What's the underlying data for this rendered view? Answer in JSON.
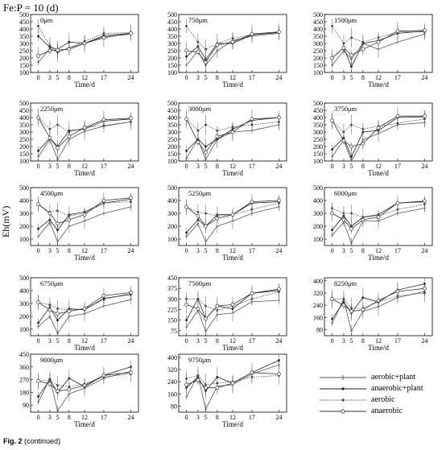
{
  "title": "Fe:P = 10 (d)",
  "ylabel": "Eh(mV)",
  "caption_prefix": "Fig. 2",
  "caption_suffix": " (continued)",
  "xlabel": "Time/d",
  "legend": [
    {
      "name": "aerobic+plant",
      "style": "solid",
      "marker": "bar"
    },
    {
      "name": "anaerobic+plant",
      "style": "solid",
      "marker": "dot"
    },
    {
      "name": "aerobic",
      "style": "dotted",
      "marker": "dot"
    },
    {
      "name": "anaerobic",
      "style": "solid",
      "marker": "circle"
    }
  ],
  "chart_data": [
    {
      "type": "line",
      "annotation": "0μm",
      "x": [
        0,
        3,
        5,
        8,
        12,
        17,
        24
      ],
      "yticks": [
        100,
        150,
        200,
        250,
        300,
        350,
        400,
        450,
        500
      ],
      "ylim": [
        100,
        500
      ],
      "series": [
        {
          "values": [
            170,
            265,
            240,
            270,
            300,
            345,
            365
          ]
        },
        {
          "values": [
            350,
            275,
            260,
            310,
            300,
            355,
            370
          ]
        },
        {
          "values": [
            420,
            285,
            240,
            270,
            315,
            370,
            375
          ]
        },
        {
          "values": [
            215,
            250,
            255,
            260,
            300,
            340,
            370
          ]
        }
      ]
    },
    {
      "type": "line",
      "annotation": "750μm",
      "x": [
        0,
        3,
        5,
        8,
        12,
        17,
        24
      ],
      "yticks": [
        100,
        150,
        200,
        250,
        300,
        350,
        400,
        450,
        500
      ],
      "ylim": [
        100,
        500
      ],
      "series": [
        {
          "values": [
            150,
            250,
            150,
            250,
            320,
            350,
            370
          ]
        },
        {
          "values": [
            210,
            280,
            190,
            300,
            300,
            360,
            375
          ]
        },
        {
          "values": [
            420,
            310,
            260,
            300,
            335,
            360,
            380
          ]
        },
        {
          "values": [
            250,
            240,
            170,
            290,
            310,
            365,
            380
          ]
        }
      ]
    },
    {
      "type": "line",
      "annotation": "1500μm",
      "x": [
        0,
        3,
        5,
        8,
        12,
        17,
        24
      ],
      "yticks": [
        100,
        150,
        200,
        250,
        300,
        350,
        400,
        450,
        500
      ],
      "ylim": [
        100,
        500
      ],
      "series": [
        {
          "values": [
            150,
            250,
            190,
            300,
            260,
            310,
            365
          ]
        },
        {
          "values": [
            200,
            270,
            140,
            300,
            320,
            370,
            385
          ]
        },
        {
          "values": [
            420,
            300,
            340,
            310,
            340,
            380,
            380
          ]
        },
        {
          "values": [
            200,
            270,
            220,
            260,
            310,
            385,
            390
          ]
        }
      ]
    },
    {
      "type": "line",
      "annotation": "2250μm",
      "x": [
        0,
        3,
        5,
        8,
        12,
        17,
        24
      ],
      "yticks": [
        100,
        150,
        200,
        250,
        300,
        350,
        400,
        450,
        500
      ],
      "ylim": [
        100,
        500
      ],
      "series": [
        {
          "values": [
            130,
            250,
            110,
            250,
            305,
            340,
            370
          ]
        },
        {
          "values": [
            170,
            260,
            200,
            310,
            320,
            375,
            390
          ]
        },
        {
          "values": [
            400,
            320,
            350,
            300,
            330,
            345,
            370
          ]
        },
        {
          "values": [
            400,
            260,
            190,
            270,
            330,
            385,
            395
          ]
        }
      ]
    },
    {
      "type": "line",
      "annotation": "3000μm",
      "x": [
        0,
        3,
        5,
        8,
        12,
        17,
        24
      ],
      "yticks": [
        100,
        150,
        200,
        250,
        300,
        350,
        400,
        450,
        500
      ],
      "ylim": [
        100,
        500
      ],
      "series": [
        {
          "values": [
            120,
            250,
            110,
            250,
            300,
            310,
            350
          ]
        },
        {
          "values": [
            170,
            250,
            200,
            250,
            320,
            380,
            400
          ]
        },
        {
          "values": [
            390,
            310,
            350,
            310,
            335,
            350,
            370
          ]
        },
        {
          "values": [
            390,
            230,
            160,
            270,
            300,
            390,
            400
          ]
        }
      ]
    },
    {
      "type": "line",
      "annotation": "3750μm",
      "x": [
        0,
        3,
        5,
        8,
        12,
        17,
        24
      ],
      "yticks": [
        100,
        150,
        200,
        250,
        300,
        350,
        400,
        450,
        500
      ],
      "ylim": [
        100,
        500
      ],
      "series": [
        {
          "values": [
            130,
            245,
            100,
            245,
            290,
            350,
            365
          ]
        },
        {
          "values": [
            180,
            260,
            130,
            300,
            310,
            400,
            405
          ]
        },
        {
          "values": [
            380,
            300,
            350,
            320,
            340,
            360,
            390
          ]
        },
        {
          "values": [
            380,
            240,
            200,
            220,
            330,
            410,
            410
          ]
        }
      ]
    },
    {
      "type": "line",
      "annotation": "4500μm",
      "x": [
        0,
        3,
        5,
        8,
        12,
        17,
        24
      ],
      "yticks": [
        100,
        200,
        300,
        400,
        500
      ],
      "ylim": [
        50,
        500
      ],
      "series": [
        {
          "values": [
            120,
            230,
            80,
            200,
            240,
            300,
            350
          ]
        },
        {
          "values": [
            180,
            250,
            170,
            290,
            310,
            380,
            410
          ]
        },
        {
          "values": [
            370,
            310,
            320,
            280,
            300,
            380,
            390
          ]
        },
        {
          "values": [
            370,
            300,
            220,
            250,
            290,
            400,
            420
          ]
        }
      ]
    },
    {
      "type": "line",
      "annotation": "5250μm",
      "x": [
        0,
        3,
        5,
        8,
        12,
        17,
        24
      ],
      "yticks": [
        100,
        200,
        300,
        400,
        500
      ],
      "ylim": [
        50,
        500
      ],
      "series": [
        {
          "values": [
            120,
            220,
            80,
            200,
            240,
            300,
            350
          ]
        },
        {
          "values": [
            150,
            250,
            200,
            290,
            290,
            380,
            390
          ]
        },
        {
          "values": [
            350,
            310,
            300,
            280,
            290,
            330,
            380
          ]
        },
        {
          "values": [
            350,
            280,
            200,
            260,
            290,
            390,
            400
          ]
        }
      ]
    },
    {
      "type": "line",
      "annotation": "6000μm",
      "x": [
        0,
        3,
        5,
        8,
        12,
        17,
        24
      ],
      "yticks": [
        100,
        200,
        300,
        400,
        500
      ],
      "ylim": [
        50,
        500
      ],
      "series": [
        {
          "values": [
            130,
            230,
            70,
            240,
            240,
            300,
            340
          ]
        },
        {
          "values": [
            170,
            280,
            200,
            270,
            290,
            380,
            390
          ]
        },
        {
          "values": [
            340,
            300,
            300,
            270,
            280,
            330,
            370
          ]
        },
        {
          "values": [
            300,
            250,
            180,
            250,
            270,
            380,
            395
          ]
        }
      ]
    },
    {
      "type": "line",
      "annotation": "6750μm",
      "x": [
        0,
        3,
        5,
        8,
        12,
        17,
        24
      ],
      "yticks": [
        100,
        200,
        300,
        400,
        500
      ],
      "ylim": [
        50,
        500
      ],
      "series": [
        {
          "values": [
            120,
            200,
            70,
            200,
            220,
            280,
            330
          ]
        },
        {
          "values": [
            150,
            270,
            170,
            260,
            250,
            340,
            370
          ]
        },
        {
          "values": [
            310,
            290,
            260,
            250,
            260,
            330,
            380
          ]
        },
        {
          "values": [
            310,
            250,
            220,
            240,
            260,
            360,
            385
          ]
        }
      ]
    },
    {
      "type": "line",
      "annotation": "7500μm",
      "x": [
        0,
        3,
        5,
        8,
        12,
        17,
        24
      ],
      "yticks": [
        75,
        150,
        225,
        300,
        375,
        450
      ],
      "ylim": [
        40,
        450
      ],
      "series": [
        {
          "values": [
            100,
            220,
            70,
            190,
            200,
            280,
            290
          ]
        },
        {
          "values": [
            150,
            300,
            160,
            250,
            230,
            340,
            360
          ]
        },
        {
          "values": [
            300,
            300,
            250,
            220,
            250,
            300,
            350
          ]
        },
        {
          "values": [
            260,
            230,
            160,
            250,
            260,
            340,
            370
          ]
        }
      ]
    },
    {
      "type": "line",
      "annotation": "8250μm",
      "x": [
        0,
        3,
        5,
        8,
        12,
        17,
        24
      ],
      "yticks": [
        80,
        160,
        240,
        320,
        400
      ],
      "ylim": [
        40,
        420
      ],
      "series": [
        {
          "values": [
            120,
            280,
            70,
            200,
            230,
            290,
            330
          ]
        },
        {
          "values": [
            150,
            260,
            190,
            290,
            260,
            340,
            380
          ]
        },
        {
          "values": [
            280,
            280,
            220,
            220,
            260,
            300,
            320
          ]
        },
        {
          "values": [
            280,
            240,
            200,
            210,
            270,
            330,
            350
          ]
        }
      ]
    },
    {
      "type": "line",
      "annotation": "9000μm",
      "x": [
        0,
        3,
        5,
        8,
        12,
        17,
        24
      ],
      "yticks": [
        90,
        180,
        270,
        360,
        450
      ],
      "ylim": [
        40,
        450
      ],
      "series": [
        {
          "values": [
            110,
            280,
            50,
            170,
            210,
            280,
            330
          ]
        },
        {
          "values": [
            150,
            270,
            180,
            280,
            220,
            300,
            360
          ]
        },
        {
          "values": [
            260,
            270,
            230,
            220,
            240,
            290,
            310
          ]
        },
        {
          "values": [
            260,
            240,
            190,
            200,
            230,
            300,
            320
          ]
        }
      ]
    },
    {
      "type": "line",
      "annotation": "9750μm",
      "x": [
        0,
        3,
        5,
        8,
        12,
        17,
        24
      ],
      "yticks": [
        80,
        160,
        240,
        320,
        400
      ],
      "ylim": [
        40,
        420
      ],
      "series": [
        {
          "values": [
            140,
            280,
            60,
            210,
            220,
            290,
            350
          ]
        },
        {
          "values": [
            200,
            270,
            180,
            270,
            230,
            300,
            380
          ]
        },
        {
          "values": [
            260,
            280,
            220,
            230,
            240,
            270,
            280
          ]
        },
        {
          "values": [
            220,
            250,
            200,
            200,
            230,
            300,
            290
          ]
        }
      ]
    }
  ]
}
